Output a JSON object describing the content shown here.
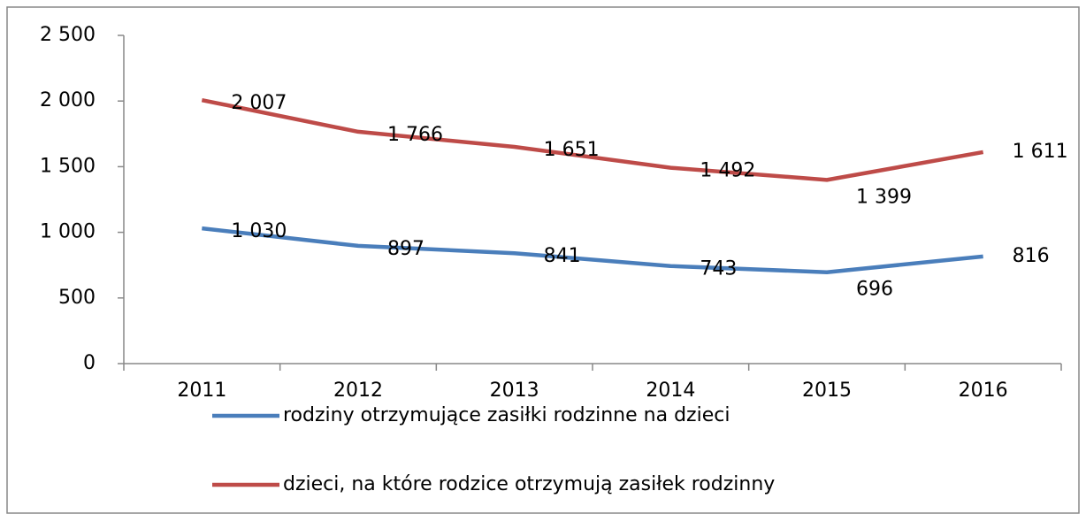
{
  "chart_data": {
    "type": "line",
    "categories": [
      "2011",
      "2012",
      "2013",
      "2014",
      "2015",
      "2016"
    ],
    "series": [
      {
        "name": "rodziny otrzymujące zasiłki rodzinne na dzieci",
        "color": "#4a7ebb",
        "values": [
          1030,
          897,
          841,
          743,
          696,
          816
        ],
        "value_labels": [
          "1 030",
          "897",
          "841",
          "743",
          "696",
          "816"
        ]
      },
      {
        "name": "dzieci, na które rodzice otrzymują zasiłek rodzinny",
        "color": "#be4b48",
        "values": [
          2007,
          1766,
          1651,
          1492,
          1399,
          1611
        ],
        "value_labels": [
          "2 007",
          "1 766",
          "1 651",
          "1 492",
          "1 399",
          "1 611"
        ]
      }
    ],
    "ylim": [
      0,
      2500
    ],
    "yticks": [
      0,
      500,
      {
        "value": 1000,
        "label": "1 000"
      },
      {
        "value": 1500,
        "label": "1 500"
      },
      {
        "value": 2000,
        "label": "2 000"
      },
      {
        "value": 2500,
        "label": "2 500"
      }
    ],
    "legend": "bottom"
  }
}
